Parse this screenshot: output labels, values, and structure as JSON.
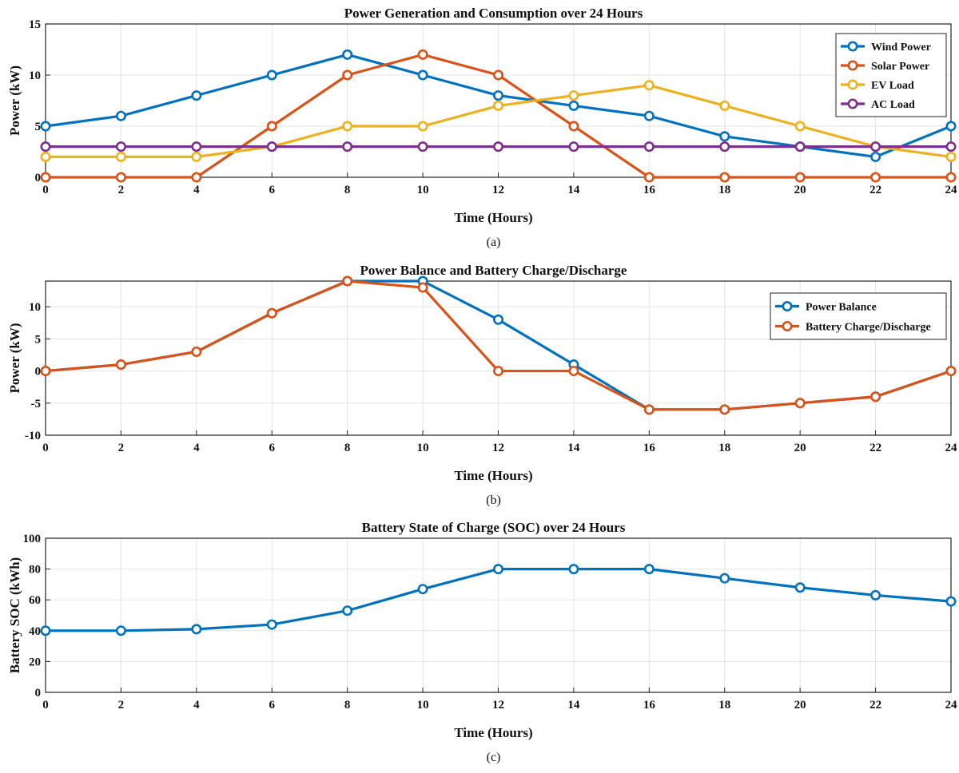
{
  "chart_data": [
    {
      "type": "line",
      "id": "a",
      "title": "Power Generation and Consumption over 24 Hours",
      "xlabel": "Time (Hours)",
      "ylabel": "Power (kW)",
      "caption": "(a)",
      "xlim": [
        0,
        24
      ],
      "ylim": [
        0,
        15
      ],
      "xticks": [
        0,
        2,
        4,
        6,
        8,
        10,
        12,
        14,
        16,
        18,
        20,
        22,
        24
      ],
      "yticks": [
        0,
        5,
        10,
        15
      ],
      "grid": true,
      "legend_position": "top-right",
      "x": [
        0,
        2,
        4,
        6,
        8,
        10,
        12,
        14,
        16,
        18,
        20,
        22,
        24
      ],
      "series": [
        {
          "name": "Wind Power",
          "color": "#0072BD",
          "values": [
            5,
            6,
            8,
            10,
            12,
            10,
            8,
            7,
            6,
            4,
            3,
            2,
            5
          ]
        },
        {
          "name": "Solar Power",
          "color": "#D95319",
          "values": [
            0,
            0,
            0,
            5,
            10,
            12,
            10,
            5,
            0,
            0,
            0,
            0,
            0
          ]
        },
        {
          "name": "EV Load",
          "color": "#EDB120",
          "values": [
            2,
            2,
            2,
            3,
            5,
            5,
            7,
            8,
            9,
            7,
            5,
            3,
            2
          ]
        },
        {
          "name": "AC Load",
          "color": "#7E2F8E",
          "values": [
            3,
            3,
            3,
            3,
            3,
            3,
            3,
            3,
            3,
            3,
            3,
            3,
            3
          ]
        }
      ]
    },
    {
      "type": "line",
      "id": "b",
      "title": "Power Balance and Battery Charge/Discharge",
      "xlabel": "Time (Hours)",
      "ylabel": "Power (kW)",
      "caption": "(b)",
      "xlim": [
        0,
        24
      ],
      "ylim": [
        -10,
        14
      ],
      "xticks": [
        0,
        2,
        4,
        6,
        8,
        10,
        12,
        14,
        16,
        18,
        20,
        22,
        24
      ],
      "yticks": [
        -10,
        -5,
        0,
        5,
        10
      ],
      "grid": true,
      "legend_position": "top-right",
      "x": [
        0,
        2,
        4,
        6,
        8,
        10,
        12,
        14,
        16,
        18,
        20,
        22,
        24
      ],
      "series": [
        {
          "name": "Power Balance",
          "color": "#0072BD",
          "values": [
            0,
            1,
            3,
            9,
            14,
            14,
            8,
            1,
            -6,
            -6,
            -5,
            -4,
            0
          ]
        },
        {
          "name": "Battery Charge/Discharge",
          "color": "#D95319",
          "values": [
            0,
            1,
            3,
            9,
            14,
            13,
            0,
            0,
            -6,
            -6,
            -5,
            -4,
            0
          ]
        }
      ]
    },
    {
      "type": "line",
      "id": "c",
      "title": "Battery State of Charge (SOC) over 24 Hours",
      "xlabel": "Time (Hours)",
      "ylabel": "Battery SOC (kWh)",
      "caption": "(c)",
      "xlim": [
        0,
        24
      ],
      "ylim": [
        0,
        100
      ],
      "xticks": [
        0,
        2,
        4,
        6,
        8,
        10,
        12,
        14,
        16,
        18,
        20,
        22,
        24
      ],
      "yticks": [
        0,
        20,
        40,
        60,
        80,
        100
      ],
      "grid": true,
      "legend_position": "none",
      "x": [
        0,
        2,
        4,
        6,
        8,
        10,
        12,
        14,
        16,
        18,
        20,
        22,
        24
      ],
      "series": [
        {
          "name": "Battery SOC",
          "color": "#0072BD",
          "values": [
            40,
            40,
            41,
            44,
            53,
            67,
            80,
            80,
            80,
            74,
            68,
            63,
            59
          ]
        }
      ]
    }
  ]
}
